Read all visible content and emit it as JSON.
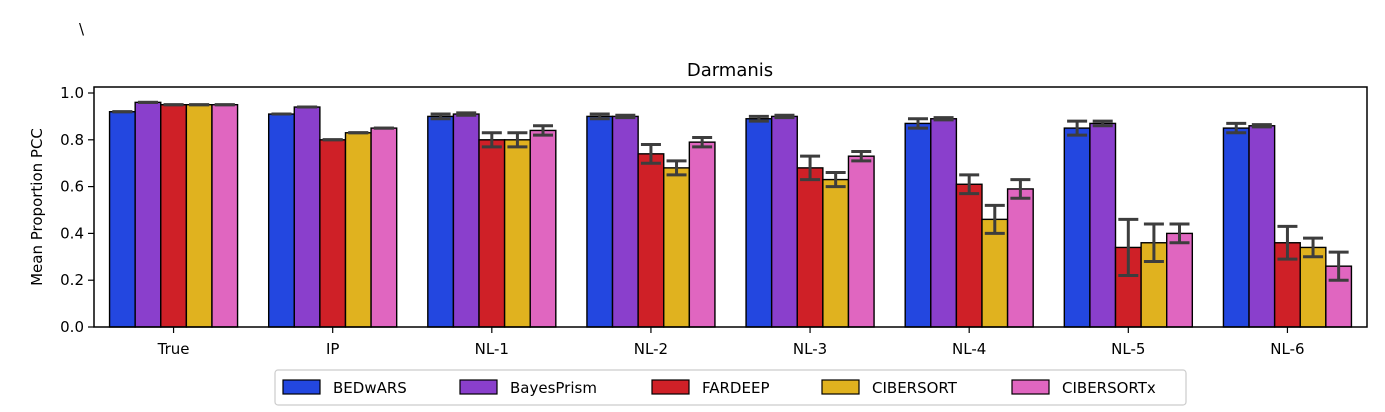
{
  "panel_label": "\\",
  "chart_data": {
    "type": "bar",
    "title": "Darmanis",
    "xlabel": "",
    "ylabel": "Mean Proportion PCC",
    "ylim": [
      0,
      1.0
    ],
    "yticks": [
      0.0,
      0.2,
      0.4,
      0.6,
      0.8,
      1.0
    ],
    "ytick_labels": [
      "0.0",
      "0.2",
      "0.4",
      "0.6",
      "0.8",
      "1.0"
    ],
    "categories": [
      "True",
      "IP",
      "NL-1",
      "NL-2",
      "NL-3",
      "NL-4",
      "NL-5",
      "NL-6"
    ],
    "series": [
      {
        "name": "BEDwARS",
        "color": "#2347e0",
        "values": [
          0.92,
          0.91,
          0.9,
          0.9,
          0.89,
          0.87,
          0.85,
          0.85
        ],
        "errors": [
          0,
          0,
          0.01,
          0.01,
          0.01,
          0.02,
          0.03,
          0.02
        ]
      },
      {
        "name": "BayesPrism",
        "color": "#8a3fcc",
        "values": [
          0.96,
          0.94,
          0.91,
          0.9,
          0.9,
          0.89,
          0.87,
          0.86
        ],
        "errors": [
          0,
          0,
          0.005,
          0.005,
          0.005,
          0.005,
          0.01,
          0.005
        ]
      },
      {
        "name": "FARDEEP",
        "color": "#cf2027",
        "values": [
          0.95,
          0.8,
          0.8,
          0.74,
          0.68,
          0.61,
          0.34,
          0.36
        ],
        "errors": [
          0,
          0,
          0.03,
          0.04,
          0.05,
          0.04,
          0.12,
          0.07
        ]
      },
      {
        "name": "CIBERSORT",
        "color": "#e0b21f",
        "values": [
          0.95,
          0.83,
          0.8,
          0.68,
          0.63,
          0.46,
          0.36,
          0.34
        ],
        "errors": [
          0,
          0,
          0.03,
          0.03,
          0.03,
          0.06,
          0.08,
          0.04
        ]
      },
      {
        "name": "CIBERSORTx",
        "color": "#e066c0",
        "values": [
          0.95,
          0.85,
          0.84,
          0.79,
          0.73,
          0.59,
          0.4,
          0.26
        ],
        "errors": [
          0,
          0,
          0.02,
          0.02,
          0.02,
          0.04,
          0.04,
          0.06
        ]
      }
    ],
    "legend": {
      "placement": "bottom-center",
      "columns": 5
    },
    "grid": false
  }
}
